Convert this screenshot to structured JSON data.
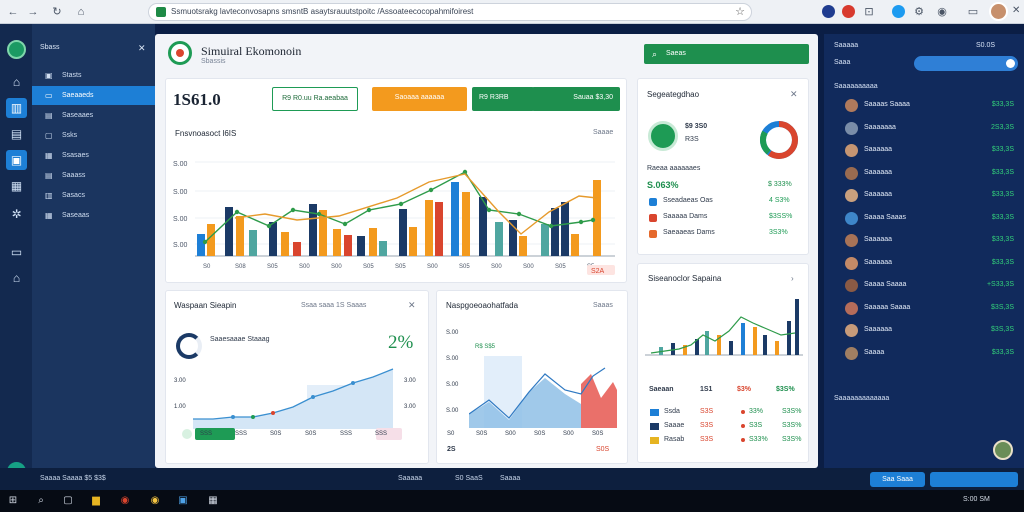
{
  "browser": {
    "url": "Ssmuotsrakg lavteconvosapns smsntB asaytsrauutstpoitc /Assoateecocopahmifoirest",
    "star_icon": "star-icon"
  },
  "rail": {
    "items": [
      {
        "icon": "chart-icon",
        "glyph": "⌂",
        "active": false
      },
      {
        "icon": "analytics-icon",
        "glyph": "▥",
        "active": true
      },
      {
        "icon": "briefcase-icon",
        "glyph": "▤",
        "active": false
      },
      {
        "icon": "dashboard-icon",
        "glyph": "▣",
        "active": true
      },
      {
        "icon": "building-icon",
        "glyph": "▦",
        "active": false
      },
      {
        "icon": "settings-icon",
        "glyph": "✲",
        "active": false
      },
      {
        "icon": "window-icon",
        "glyph": "▭",
        "active": false
      },
      {
        "icon": "home-icon",
        "glyph": "⌂",
        "active": false
      }
    ]
  },
  "sidenav": {
    "header": "Sbass",
    "items": [
      {
        "icon": "▣",
        "label": "Stasts",
        "active": false
      },
      {
        "icon": "▭",
        "label": "Saeaaeds",
        "active": true
      },
      {
        "icon": "▤",
        "label": "Saseaaes",
        "active": false
      },
      {
        "icon": "▢",
        "label": "Ssks",
        "active": false
      },
      {
        "icon": "▦",
        "label": "Ssasaes",
        "active": false
      },
      {
        "icon": "▤",
        "label": "Saaass",
        "active": false
      },
      {
        "icon": "▥",
        "label": "Sasacs",
        "active": false
      },
      {
        "icon": "▦",
        "label": "Saseaas",
        "active": false
      }
    ]
  },
  "header": {
    "title": "Simuiral Ekomonoin",
    "subtitle": "Sbassis",
    "search_label": "Saeas"
  },
  "stats": {
    "big_value": "1S61.0",
    "pill_outline": "R9 R0.uu Ra.aeabaa",
    "pill_orange": "Saoaaa aaaaaa",
    "pill_green_a": "R9 R3RB",
    "pill_green_b": "Sauaa  $3,30"
  },
  "main_chart": {
    "title": "Fnsvnoasoct l6IS",
    "note": "Saaae",
    "badge": "S2A"
  },
  "gauge_card": {
    "title": "Segeategdhao",
    "center_value": "$9 3S0",
    "center_sub": "R3S",
    "subheading": "Raeaa aaaaaaes",
    "big_value": "S.063%",
    "big_value_right": "$ 333%",
    "rows": [
      {
        "label": "Sseadaeas Oas",
        "value": "4 S3%",
        "color": "#1e9b55"
      },
      {
        "label": "Saaaaa Dams",
        "value": "$3SS%",
        "color": "#1e9b55"
      },
      {
        "label": "Saeaaeas Dams",
        "value": "3S3%",
        "color": "#1e9b55"
      }
    ]
  },
  "spend_card": {
    "title": "Siseanoclor Sapaina",
    "cols": [
      "Saeaan",
      "1S1",
      "$3%",
      "$3S%"
    ],
    "rows": [
      {
        "label": "Ssda",
        "a": "S3S",
        "b": "33%",
        "c": "S3S%"
      },
      {
        "label": "Saaae",
        "a": "S3S",
        "b": "S3S",
        "c": "S3S%"
      },
      {
        "label": "Rasab",
        "a": "S3S",
        "b": "S33%",
        "c": "S3S%"
      }
    ]
  },
  "account_card": {
    "title": "Waspaan Sieapin",
    "note": "Ssaa saaa  1S  Saaas",
    "item_label": "Saaesaaae Staaag",
    "percent": "2%",
    "y_top": "3.00",
    "y_bottom": "1.00",
    "y_right_top": "3.00",
    "y_right_bottom": "3.00",
    "x_labels": [
      "SSS",
      "SSS",
      "S0S",
      "S0S",
      "SSS",
      "SSS"
    ]
  },
  "area_card": {
    "title": "Naspgoeoaohatfada",
    "note": "Saaas",
    "badge": "R$ S$5",
    "y_labels": [
      "S.00",
      "S.00",
      "S.00",
      "S.00"
    ],
    "x_labels": [
      "S0",
      "S0S",
      "S00",
      "S0S",
      "S00",
      "S0S"
    ],
    "bottom_left": "2S",
    "bottom_right": "S0S"
  },
  "right_panel": {
    "title": "Saaaaa",
    "title_right": "S0.0S",
    "row2_label": "Saaa",
    "section_title": "Saaaaaaaaaa",
    "footer": "Saaaaaaaaaaaaa",
    "people": [
      {
        "name": "Saaaas Saaaa",
        "value": "$33,3S",
        "avatar": "#b07a5c"
      },
      {
        "name": "Saaaaaaa",
        "value": "2S3,3S",
        "avatar": "#7a8da8"
      },
      {
        "name": "Saaaaaa",
        "value": "$33,3S",
        "avatar": "#c59572"
      },
      {
        "name": "Saaaaaa",
        "value": "$33,3S",
        "avatar": "#9a6b50"
      },
      {
        "name": "Saaaaaa",
        "value": "$33,3S",
        "avatar": "#c9a07e"
      },
      {
        "name": "Saaaa Saaas",
        "value": "$33,3S",
        "avatar": "#3e86c9"
      },
      {
        "name": "Saaaaaa",
        "value": "$33,3S",
        "avatar": "#a87357"
      },
      {
        "name": "Saaaaaa",
        "value": "$33,3S",
        "avatar": "#c48a67"
      },
      {
        "name": "Saaaa Saaaa",
        "value": "+S33,3S",
        "avatar": "#8a5a45"
      },
      {
        "name": "Saaaaa Saaaa",
        "value": "$3S,3S",
        "avatar": "#b56c5a"
      },
      {
        "name": "Saaaaaa",
        "value": "$3S,3S",
        "avatar": "#c79b7a"
      },
      {
        "name": "Saaaa",
        "value": "$33,3S",
        "avatar": "#a07e62"
      }
    ]
  },
  "bottom_strip": {
    "left_text": "Saaaa Saaaa  $5 $3$",
    "mid_a": "Saaaaa",
    "mid_b": "S0 SaaS",
    "mid_c": "Saaaa",
    "btn_label": "Saa Saaa"
  },
  "taskbar": {
    "clock": "S:00 SM"
  },
  "colors": {
    "accent_blue": "#1d7fd6",
    "green": "#1e8f4e",
    "orange": "#f39a1e",
    "red": "#d9452e",
    "navy": "#112a5c"
  }
}
